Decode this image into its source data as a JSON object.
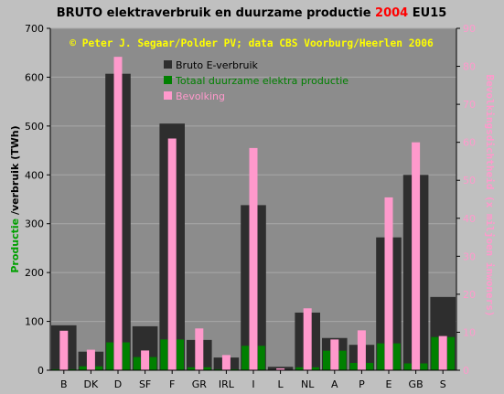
{
  "chart_data": {
    "type": "bar",
    "title": {
      "prefix": "BRUTO elektraverbruik en duurzame productie ",
      "year": "2004",
      "suffix": " EU15"
    },
    "subtitle": "© Peter J. Segaar/Polder PV; data CBS Voorburg/Heerlen 2006",
    "ylabel": {
      "part1": "Productie",
      "part2": " /verbruik  (TWh)"
    },
    "y2label": "Bevolkingsdichtheid (x miljoen inwoners)",
    "ylim": [
      0,
      700
    ],
    "y2lim": [
      0,
      90
    ],
    "yticks": [
      "0",
      "100",
      "200",
      "300",
      "400",
      "500",
      "600",
      "700"
    ],
    "y2ticks": [
      "0",
      "10",
      "20",
      "30",
      "40",
      "50",
      "60",
      "70",
      "80",
      "90"
    ],
    "categories": [
      "B",
      "DK",
      "D",
      "SF",
      "F",
      "GR",
      "IRL",
      "I",
      "L",
      "NL",
      "A",
      "P",
      "E",
      "GB",
      "S"
    ],
    "series": [
      {
        "name": "Bruto E-verbruik",
        "color": "#2e2e2e",
        "axis": "left",
        "values": [
          92,
          38,
          607,
          90,
          505,
          62,
          26,
          338,
          7,
          118,
          66,
          52,
          272,
          400,
          150
        ]
      },
      {
        "name": "Totaal duurzame elektra productie",
        "color": "#008000",
        "axis": "left",
        "values": [
          2,
          8,
          57,
          27,
          63,
          6,
          2,
          50,
          0,
          6,
          40,
          15,
          55,
          14,
          68
        ]
      },
      {
        "name": "Bevolking",
        "color": "#ff99cc",
        "axis": "right",
        "values": [
          10.4,
          5.4,
          82.5,
          5.2,
          61,
          11,
          4,
          58.5,
          0.5,
          16.3,
          8.1,
          10.5,
          45.5,
          60,
          9
        ]
      }
    ],
    "legend": "top-right",
    "grid": true
  }
}
